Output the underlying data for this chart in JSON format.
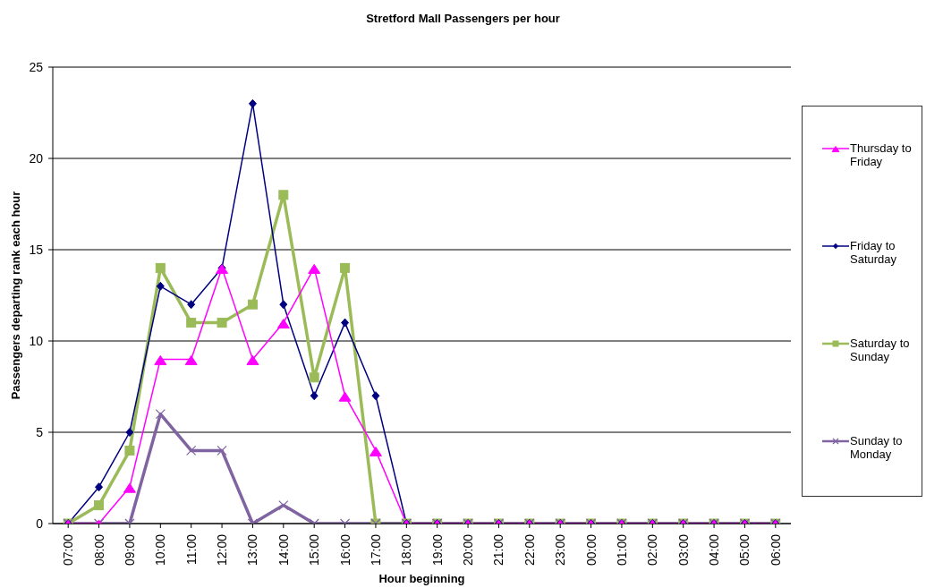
{
  "chart_data": {
    "type": "line",
    "title": "Stretford Mall Passengers per hour",
    "xlabel": "Hour beginning",
    "ylabel": "Passengers departing rank each hour",
    "categories": [
      "07:00",
      "08:00",
      "09:00",
      "10:00",
      "11:00",
      "12:00",
      "13:00",
      "14:00",
      "15:00",
      "16:00",
      "17:00",
      "18:00",
      "19:00",
      "20:00",
      "21:00",
      "22:00",
      "23:00",
      "00:00",
      "01:00",
      "02:00",
      "03:00",
      "04:00",
      "05:00",
      "06:00"
    ],
    "series": [
      {
        "name": "Thursday to Friday",
        "color": "#ff00ff",
        "marker": "triangle",
        "values": [
          0,
          0,
          2,
          9,
          9,
          14,
          9,
          11,
          14,
          7,
          4,
          0,
          0,
          0,
          0,
          0,
          0,
          0,
          0,
          0,
          0,
          0,
          0,
          0
        ]
      },
      {
        "name": "Friday to Saturday",
        "color": "#000080",
        "marker": "diamond",
        "values": [
          0,
          2,
          5,
          13,
          12,
          14,
          23,
          12,
          7,
          11,
          7,
          0,
          0,
          0,
          0,
          0,
          0,
          0,
          0,
          0,
          0,
          0,
          0,
          0
        ]
      },
      {
        "name": "Saturday to Sunday",
        "color": "#9bbb59",
        "marker": "square",
        "values": [
          0,
          1,
          4,
          14,
          11,
          11,
          12,
          18,
          8,
          14,
          0,
          0,
          0,
          0,
          0,
          0,
          0,
          0,
          0,
          0,
          0,
          0,
          0,
          0
        ]
      },
      {
        "name": "Sunday to Monday",
        "color": "#8064a2",
        "marker": "cross",
        "values": [
          0,
          0,
          0,
          6,
          4,
          4,
          0,
          1,
          0,
          0,
          0,
          0,
          0,
          0,
          0,
          0,
          0,
          0,
          0,
          0,
          0,
          0,
          0,
          0
        ]
      }
    ],
    "ylim": [
      0,
      25
    ],
    "yticks": [
      0,
      5,
      10,
      15,
      20,
      25
    ],
    "grid": "y",
    "legend": "right",
    "line_style": "solid"
  }
}
